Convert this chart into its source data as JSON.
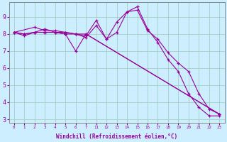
{
  "xlabel": "Windchill (Refroidissement éolien,°C)",
  "bg_color": "#cceeff",
  "line_color": "#990099",
  "grid_color": "#99ccbb",
  "series": [
    {
      "x": [
        0,
        1,
        2,
        3,
        4,
        5,
        6,
        7,
        11,
        12,
        13,
        14,
        15,
        16,
        17,
        18,
        19,
        20,
        21,
        22,
        23
      ],
      "y": [
        8.1,
        7.9,
        8.1,
        8.3,
        8.1,
        8.1,
        8.0,
        7.9,
        8.8,
        7.7,
        8.7,
        9.3,
        9.6,
        8.3,
        7.5,
        6.5,
        5.8,
        4.5,
        3.7,
        3.2,
        3.2
      ]
    },
    {
      "x": [
        0,
        2,
        3,
        4,
        5,
        6,
        7,
        11,
        12,
        13,
        14,
        15,
        16,
        17,
        18,
        19,
        20,
        21,
        22,
        23
      ],
      "y": [
        8.1,
        8.4,
        8.2,
        8.2,
        8.1,
        8.0,
        7.8,
        8.5,
        7.7,
        8.1,
        9.3,
        9.4,
        8.2,
        7.7,
        6.9,
        6.3,
        5.8,
        4.5,
        3.6,
        3.3
      ]
    },
    {
      "x": [
        0,
        1,
        2,
        3,
        4,
        5,
        6,
        7,
        23
      ],
      "y": [
        8.1,
        8.0,
        8.1,
        8.1,
        8.1,
        8.0,
        7.0,
        8.0,
        3.3
      ]
    },
    {
      "x": [
        0,
        1,
        2,
        3,
        4,
        5,
        6,
        7,
        23
      ],
      "y": [
        8.1,
        8.0,
        8.1,
        8.1,
        8.1,
        8.0,
        8.0,
        8.0,
        3.3
      ]
    }
  ],
  "visible_xticks": [
    0,
    1,
    2,
    3,
    4,
    5,
    6,
    7,
    11,
    12,
    13,
    14,
    15,
    16,
    17,
    18,
    19,
    20,
    21,
    22,
    23
  ],
  "ylim": [
    2.8,
    9.85
  ],
  "yticks": [
    3,
    4,
    5,
    6,
    7,
    8,
    9
  ]
}
